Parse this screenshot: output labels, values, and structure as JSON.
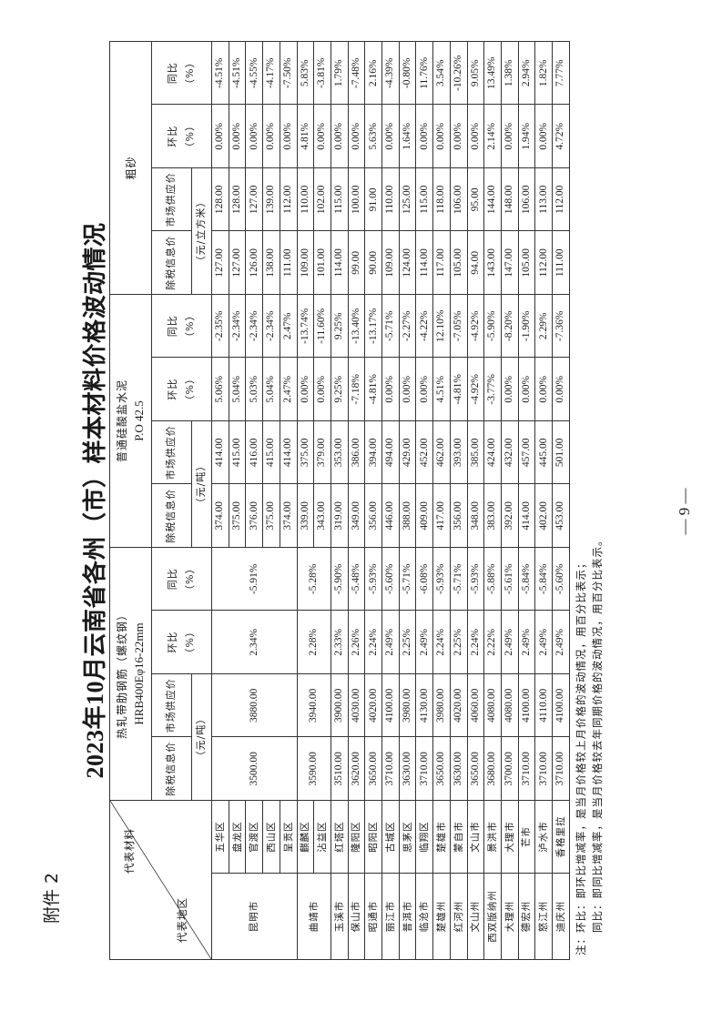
{
  "attachment_label": "附件 2",
  "title": "2023年10月云南省各州（市）样本材料价格波动情况",
  "corner": {
    "material": "代表材料",
    "region": "代表地区"
  },
  "groups": [
    {
      "name": "热轧带肋钢筋（螺纹钢）",
      "spec": "HRB400Eφ16-22mm",
      "unit": "（元/吨）"
    },
    {
      "name": "普通硅酸盐水泥",
      "spec": "P.O 42.5",
      "unit": "（元/吨）"
    },
    {
      "name": "粗砂",
      "spec": "",
      "unit": "（元/立方米）"
    }
  ],
  "subheaders": {
    "tax_price": "除税信息价",
    "market_price": "市场供应价",
    "mom": "环比",
    "yoy": "同比",
    "pct": "（%）"
  },
  "regions": [
    {
      "city": "昆明市",
      "steel": [
        "3500.00",
        "3880.00",
        "2.34%",
        "-5.91%"
      ],
      "districts": [
        {
          "name": "五华区",
          "cement": [
            "374.00",
            "414.00",
            "5.06%",
            "-2.35%"
          ],
          "sand": [
            "127.00",
            "128.00",
            "0.00%",
            "-4.51%"
          ]
        },
        {
          "name": "盘龙区",
          "cement": [
            "375.00",
            "415.00",
            "5.04%",
            "-2.34%"
          ],
          "sand": [
            "127.00",
            "128.00",
            "0.00%",
            "-4.51%"
          ]
        },
        {
          "name": "官渡区",
          "cement": [
            "376.00",
            "416.00",
            "5.03%",
            "-2.34%"
          ],
          "sand": [
            "126.00",
            "127.00",
            "0.00%",
            "-4.55%"
          ]
        },
        {
          "name": "西山区",
          "cement": [
            "375.00",
            "415.00",
            "5.04%",
            "-2.34%"
          ],
          "sand": [
            "138.00",
            "139.00",
            "0.00%",
            "-4.17%"
          ]
        },
        {
          "name": "呈贡区",
          "cement": [
            "374.00",
            "414.00",
            "2.47%",
            "2.47%"
          ],
          "sand": [
            "111.00",
            "112.00",
            "0.00%",
            "-7.50%"
          ]
        }
      ]
    },
    {
      "city": "曲靖市",
      "steel": [
        "3590.00",
        "3940.00",
        "2.28%",
        "-5.28%"
      ],
      "districts": [
        {
          "name": "麒麟区",
          "cement": [
            "339.00",
            "375.00",
            "0.00%",
            "-13.74%"
          ],
          "sand": [
            "109.00",
            "110.00",
            "4.81%",
            "5.83%"
          ]
        },
        {
          "name": "沾益区",
          "cement": [
            "343.00",
            "379.00",
            "0.00%",
            "-11.60%"
          ],
          "sand": [
            "101.00",
            "102.00",
            "0.00%",
            "-3.81%"
          ]
        }
      ]
    },
    {
      "city": "玉溪市",
      "steel": [
        "3510.00",
        "3900.00",
        "2.33%",
        "-5.90%"
      ],
      "districts": [
        {
          "name": "红塔区",
          "cement": [
            "319.00",
            "353.00",
            "9.25%",
            "9.25%"
          ],
          "sand": [
            "114.00",
            "115.00",
            "0.00%",
            "1.79%"
          ]
        }
      ]
    },
    {
      "city": "保山市",
      "steel": [
        "3620.00",
        "4030.00",
        "2.26%",
        "-5.48%"
      ],
      "districts": [
        {
          "name": "隆阳区",
          "cement": [
            "349.00",
            "386.00",
            "-7.18%",
            "-13.40%"
          ],
          "sand": [
            "99.00",
            "100.00",
            "0.00%",
            "-7.48%"
          ]
        }
      ]
    },
    {
      "city": "昭通市",
      "steel": [
        "3650.00",
        "4020.00",
        "2.24%",
        "-5.93%"
      ],
      "districts": [
        {
          "name": "昭阳区",
          "cement": [
            "356.00",
            "394.00",
            "-4.81%",
            "-13.17%"
          ],
          "sand": [
            "90.00",
            "91.00",
            "5.63%",
            "2.16%"
          ]
        }
      ]
    },
    {
      "city": "丽江市",
      "steel": [
        "3710.00",
        "4100.00",
        "2.49%",
        "-5.60%"
      ],
      "districts": [
        {
          "name": "古城区",
          "cement": [
            "446.00",
            "494.00",
            "0.00%",
            "-5.71%"
          ],
          "sand": [
            "109.00",
            "110.00",
            "0.00%",
            "-4.39%"
          ]
        }
      ]
    },
    {
      "city": "普洱市",
      "steel": [
        "3630.00",
        "3980.00",
        "2.25%",
        "-5.71%"
      ],
      "districts": [
        {
          "name": "思茅区",
          "cement": [
            "388.00",
            "429.00",
            "0.00%",
            "-2.27%"
          ],
          "sand": [
            "124.00",
            "125.00",
            "1.64%",
            "-0.80%"
          ]
        }
      ]
    },
    {
      "city": "临沧市",
      "steel": [
        "3710.00",
        "4130.00",
        "2.49%",
        "-6.08%"
      ],
      "districts": [
        {
          "name": "临翔区",
          "cement": [
            "409.00",
            "452.00",
            "0.00%",
            "-4.22%"
          ],
          "sand": [
            "114.00",
            "115.00",
            "0.00%",
            "11.76%"
          ]
        }
      ]
    },
    {
      "city": "楚雄州",
      "steel": [
        "3650.00",
        "3980.00",
        "2.24%",
        "-5.93%"
      ],
      "districts": [
        {
          "name": "楚雄市",
          "cement": [
            "417.00",
            "462.00",
            "4.51%",
            "12.10%"
          ],
          "sand": [
            "117.00",
            "118.00",
            "0.00%",
            "3.54%"
          ]
        }
      ]
    },
    {
      "city": "红河州",
      "steel": [
        "3630.00",
        "4020.00",
        "2.25%",
        "-5.71%"
      ],
      "districts": [
        {
          "name": "蒙自市",
          "cement": [
            "356.00",
            "393.00",
            "-4.81%",
            "-7.05%"
          ],
          "sand": [
            "105.00",
            "106.00",
            "0.00%",
            "-10.26%"
          ]
        }
      ]
    },
    {
      "city": "文山州",
      "steel": [
        "3650.00",
        "4060.00",
        "2.24%",
        "-5.93%"
      ],
      "districts": [
        {
          "name": "文山市",
          "cement": [
            "348.00",
            "385.00",
            "-4.92%",
            "-4.92%"
          ],
          "sand": [
            "94.00",
            "95.00",
            "0.00%",
            "9.05%"
          ]
        }
      ]
    },
    {
      "city": "西双版纳州",
      "steel": [
        "3680.00",
        "4080.00",
        "2.22%",
        "-5.88%"
      ],
      "districts": [
        {
          "name": "景洪市",
          "cement": [
            "383.00",
            "424.00",
            "-3.77%",
            "-5.90%"
          ],
          "sand": [
            "143.00",
            "144.00",
            "2.14%",
            "13.49%"
          ]
        }
      ]
    },
    {
      "city": "大理州",
      "steel": [
        "3700.00",
        "4080.00",
        "2.49%",
        "-5.61%"
      ],
      "districts": [
        {
          "name": "大理市",
          "cement": [
            "392.00",
            "432.00",
            "0.00%",
            "-8.20%"
          ],
          "sand": [
            "147.00",
            "148.00",
            "0.00%",
            "1.38%"
          ]
        }
      ]
    },
    {
      "city": "德宏州",
      "steel": [
        "3710.00",
        "4100.00",
        "2.49%",
        "-5.84%"
      ],
      "districts": [
        {
          "name": "芒市",
          "cement": [
            "414.00",
            "457.00",
            "0.00%",
            "-1.90%"
          ],
          "sand": [
            "105.00",
            "106.00",
            "1.94%",
            "2.94%"
          ]
        }
      ]
    },
    {
      "city": "怒江州",
      "steel": [
        "3710.00",
        "4110.00",
        "2.49%",
        "-5.84%"
      ],
      "districts": [
        {
          "name": "泸水市",
          "cement": [
            "402.00",
            "445.00",
            "0.00%",
            "2.29%"
          ],
          "sand": [
            "112.00",
            "113.00",
            "0.00%",
            "1.82%"
          ]
        }
      ]
    },
    {
      "city": "迪庆州",
      "steel": [
        "3710.00",
        "4100.00",
        "2.49%",
        "-5.60%"
      ],
      "districts": [
        {
          "name": "香格里拉",
          "cement": [
            "453.00",
            "501.00",
            "0.00%",
            "-7.36%"
          ],
          "sand": [
            "111.00",
            "112.00",
            "4.72%",
            "7.77%"
          ]
        }
      ]
    }
  ],
  "notes": [
    "注：环比：即环比增减率，是当月价格较上月价格的波动情况，用百分比表示；",
    "　　同比：即同比增减率，是当月价格较去年同期价格的波动情况，用百分比表示。"
  ],
  "page_number": "— 9 —"
}
